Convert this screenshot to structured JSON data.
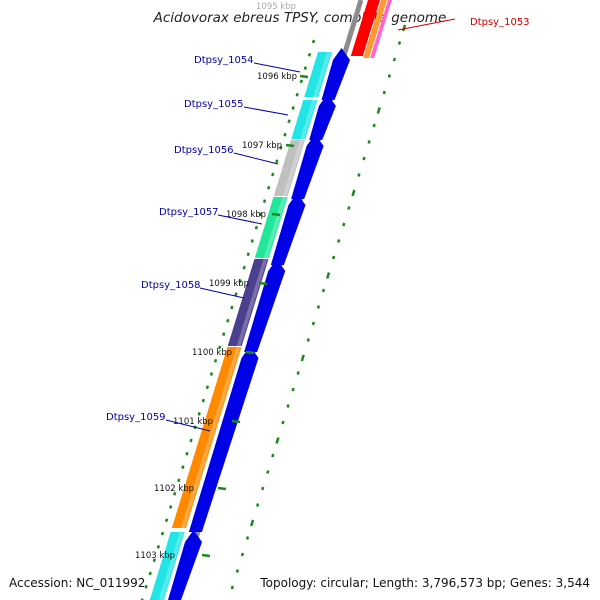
{
  "map": {
    "title": "Acidovorax ebreus TPSY, complete genome",
    "accession_text": "Accession: NC_011992",
    "summary_text": "Topology: circular; Length: 3,796,573 bp; Genes: 3,544"
  },
  "kbp_labels": [
    "1095 kbp",
    "1096 kbp",
    "1097 kbp",
    "1098 kbp",
    "1099 kbp",
    "1100 kbp",
    "1101 kbp",
    "1102 kbp",
    "1103 kbp"
  ],
  "gene_labels": [
    {
      "text": "Dtpsy_1053",
      "color": "#cc0000"
    },
    {
      "text": "Dtpsy_1054",
      "color": "#0000aa"
    },
    {
      "text": "Dtpsy_1055",
      "color": "#0000aa"
    },
    {
      "text": "Dtpsy_1056",
      "color": "#0000aa"
    },
    {
      "text": "Dtpsy_1057",
      "color": "#0000aa"
    },
    {
      "text": "Dtpsy_1058",
      "color": "#0000aa"
    },
    {
      "text": "Dtpsy_1059",
      "color": "#0000aa"
    }
  ],
  "colors": {
    "backbone": "#888888",
    "tick": "#1a8a1a",
    "cds_arrow": "#0000e6",
    "cog_segments": [
      "#22e5e5",
      "#22e5e5",
      "#c0c0c0",
      "#22e79a",
      "#4b3f8f",
      "#ff8a00",
      "#22e5e5"
    ],
    "dtpsy_1053_segments": [
      "#ff0000",
      "#ff9933",
      "#ff66cc"
    ]
  }
}
